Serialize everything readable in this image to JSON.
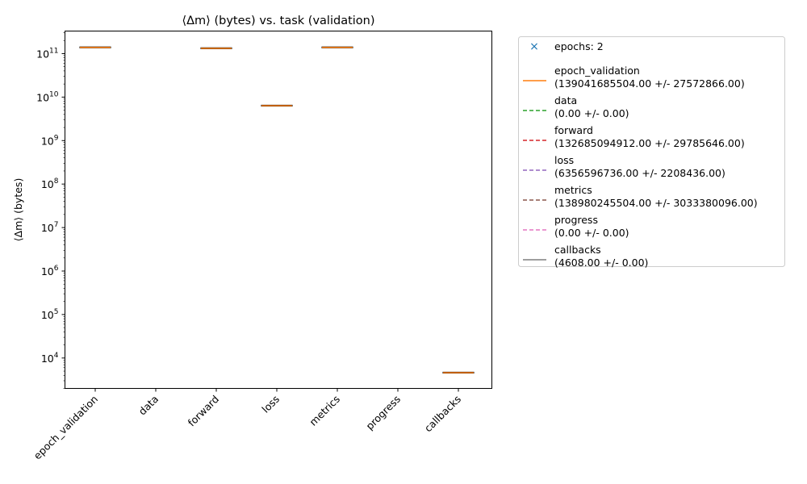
{
  "chart_data": {
    "type": "box",
    "title": "⟨Δm⟩ (bytes) vs. task (validation)",
    "ylabel": "⟨Δm⟩ (bytes)",
    "xlabel": "",
    "yscale": "log",
    "ylim": [
      2000,
      330000000000
    ],
    "y_ticks": [
      {
        "value": 10000,
        "base": "10",
        "exp": "4"
      },
      {
        "value": 100000,
        "base": "10",
        "exp": "5"
      },
      {
        "value": 1000000,
        "base": "10",
        "exp": "6"
      },
      {
        "value": 10000000,
        "base": "10",
        "exp": "7"
      },
      {
        "value": 100000000,
        "base": "10",
        "exp": "8"
      },
      {
        "value": 1000000000,
        "base": "10",
        "exp": "9"
      },
      {
        "value": 10000000000,
        "base": "10",
        "exp": "10"
      },
      {
        "value": 100000000000,
        "base": "10",
        "exp": "11"
      }
    ],
    "categories": [
      "epoch_validation",
      "data",
      "forward",
      "loss",
      "metrics",
      "progress",
      "callbacks"
    ],
    "values": [
      139041685504,
      0,
      132685094912,
      6356596736,
      138980245504,
      0,
      4608
    ],
    "errors": [
      27572866,
      0,
      29785646,
      2208436,
      3033380096,
      0,
      0
    ],
    "legend": {
      "placement": "outside-right",
      "entries": [
        {
          "label": "epochs: 2",
          "line1": "epochs: 2",
          "line2": "",
          "color": "#1f77b4",
          "style": "marker-x"
        },
        {
          "label": "epoch_validation",
          "line1": "epoch_validation",
          "line2": "(139041685504.00 +/- 27572866.00)",
          "color": "#ff7f0e",
          "style": "solid"
        },
        {
          "label": "data",
          "line1": "data",
          "line2": "(0.00 +/- 0.00)",
          "color": "#2ca02c",
          "style": "dashed"
        },
        {
          "label": "forward",
          "line1": "forward",
          "line2": "(132685094912.00 +/- 29785646.00)",
          "color": "#d62728",
          "style": "dashed"
        },
        {
          "label": "loss",
          "line1": "loss",
          "line2": "(6356596736.00 +/- 2208436.00)",
          "color": "#9467bd",
          "style": "dashed"
        },
        {
          "label": "metrics",
          "line1": "metrics",
          "line2": "(138980245504.00 +/- 3033380096.00)",
          "color": "#8c564b",
          "style": "dashed"
        },
        {
          "label": "progress",
          "line1": "progress",
          "line2": "(0.00 +/- 0.00)",
          "color": "#e377c2",
          "style": "dashed"
        },
        {
          "label": "callbacks",
          "line1": "callbacks",
          "line2": "(4608.00 +/- 0.00)",
          "color": "#7f7f7f",
          "style": "solid"
        }
      ]
    },
    "colors": {
      "median": "#ff7f0e",
      "box": "#000000",
      "axes": "#000000"
    },
    "grid": false
  }
}
